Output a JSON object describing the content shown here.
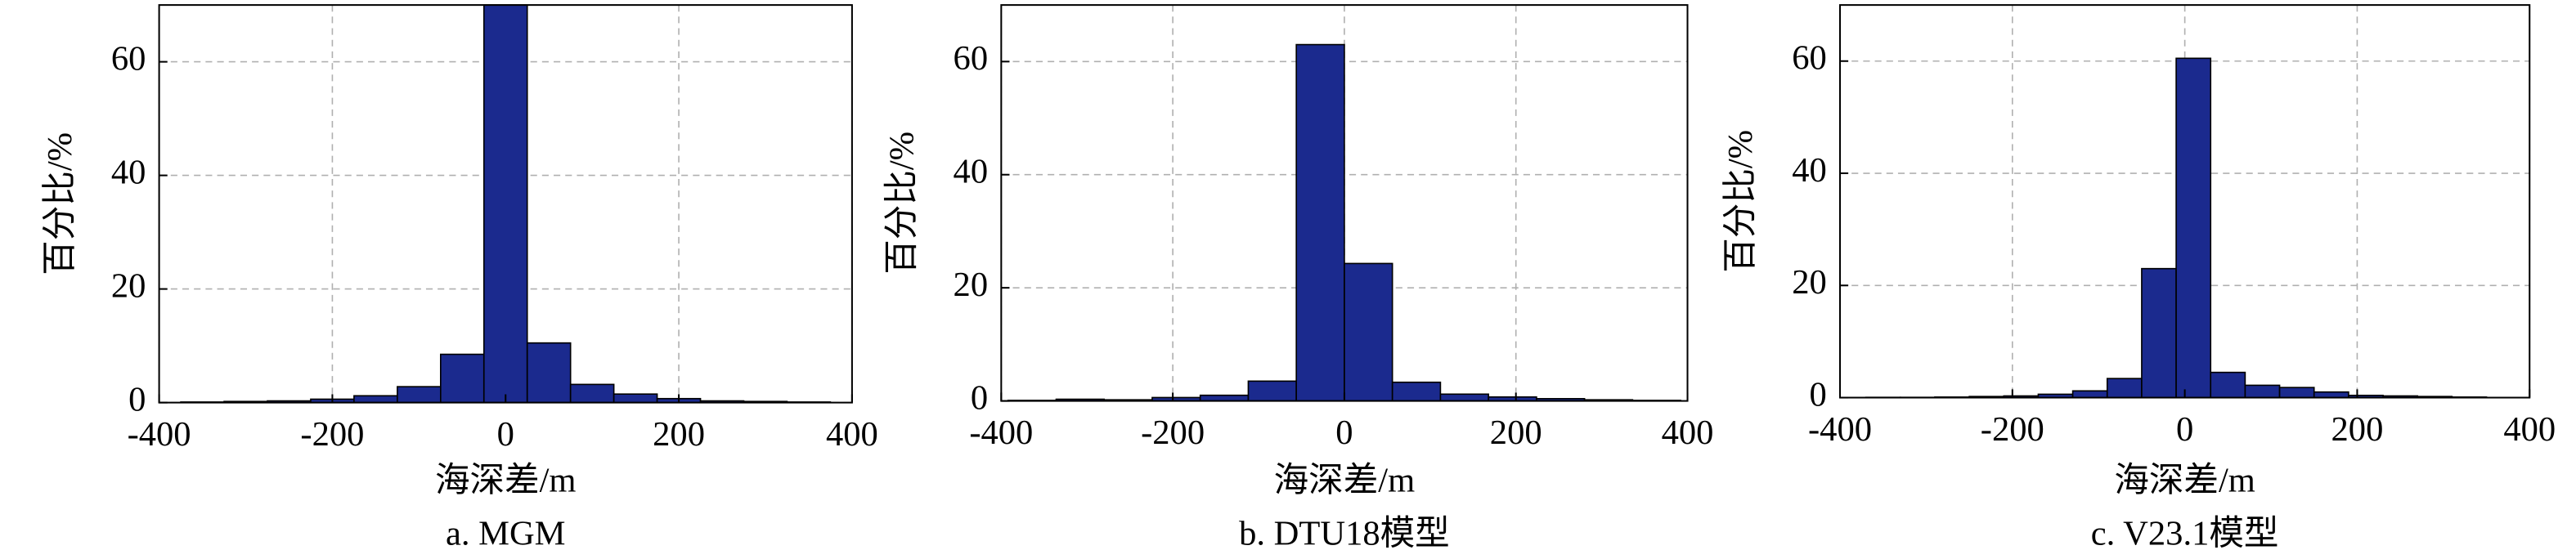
{
  "chart_data": [
    {
      "type": "histogram",
      "title": "a. MGM",
      "xlabel": "海深差/m",
      "ylabel": "百分比/%",
      "color": "#1b2a8e",
      "grid": true,
      "bins": [
        -375,
        -325,
        -275,
        -225,
        -175,
        -125,
        -75,
        -25,
        25,
        75,
        125,
        175,
        225,
        275,
        325,
        375
      ],
      "values": [
        0.1,
        0.2,
        0.3,
        0.6,
        1.2,
        2.8,
        8.5,
        70,
        10.5,
        3.2,
        1.5,
        0.7,
        0.3,
        0.2,
        0.1
      ],
      "xlim": [
        -400,
        400
      ],
      "xticks": [
        -400,
        -200,
        0,
        200,
        400
      ],
      "ylim": [
        0,
        70
      ],
      "yticks": [
        0,
        20,
        40,
        60
      ]
    },
    {
      "type": "histogram",
      "title": "b. DTU18模型",
      "xlabel": "海深差/m",
      "ylabel": "百分比/%",
      "color": "#1b2a8e",
      "grid": true,
      "bins": [
        -392,
        -336,
        -280,
        -224,
        -168,
        -112,
        -56,
        0,
        56,
        112,
        168,
        224,
        280,
        336,
        392
      ],
      "values": [
        0.1,
        0.3,
        0.2,
        0.6,
        1.0,
        3.5,
        63,
        24.3,
        3.3,
        1.2,
        0.7,
        0.4,
        0.2,
        0.1
      ],
      "xlim": [
        -400,
        400
      ],
      "xticks": [
        -400,
        -200,
        0,
        200,
        400
      ],
      "ylim": [
        0,
        70
      ],
      "yticks": [
        0,
        20,
        40,
        60
      ]
    },
    {
      "type": "histogram",
      "title": "c. V23.1模型",
      "xlabel": "海深差/m",
      "ylabel": "百分比/%",
      "color": "#1b2a8e",
      "grid": true,
      "bins": [
        -370,
        -330,
        -290,
        -250,
        -210,
        -170,
        -130,
        -90,
        -50,
        -10,
        30,
        70,
        110,
        150,
        190,
        230,
        270,
        310,
        350
      ],
      "values": [
        0.05,
        0.05,
        0.1,
        0.2,
        0.3,
        0.6,
        1.2,
        3.4,
        23,
        60.5,
        4.5,
        2.2,
        1.8,
        1.0,
        0.4,
        0.3,
        0.2,
        0.1
      ],
      "xlim": [
        -400,
        400
      ],
      "xticks": [
        -400,
        -200,
        0,
        200,
        400
      ],
      "ylim": [
        0,
        70
      ],
      "yticks": [
        0,
        20,
        40,
        60
      ]
    }
  ]
}
